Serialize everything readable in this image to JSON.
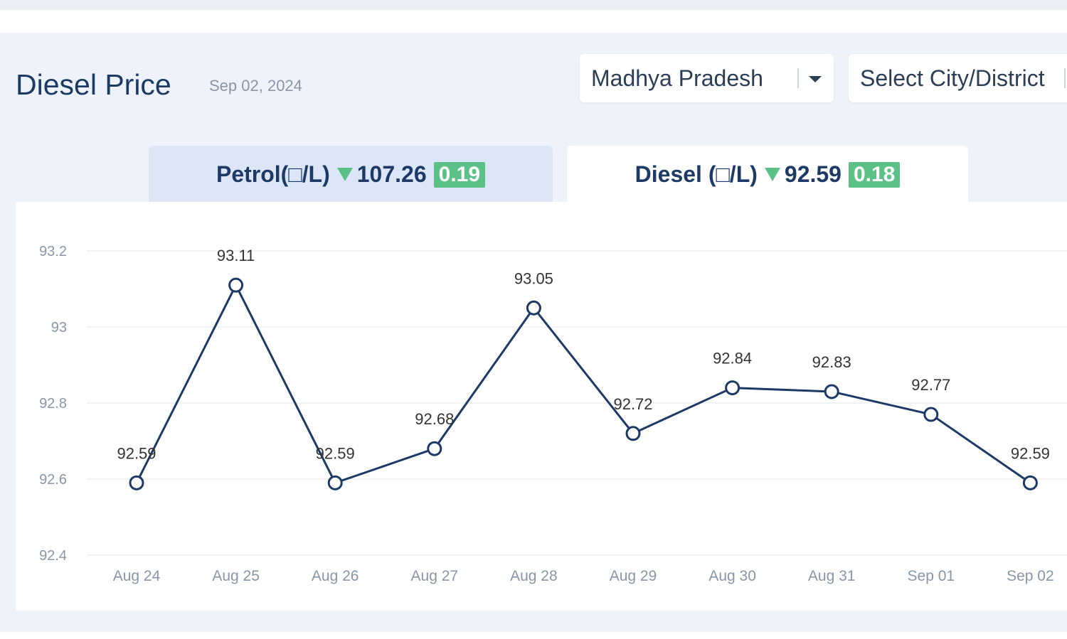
{
  "header": {
    "title": "Diesel Price",
    "date": "Sep 02, 2024"
  },
  "filters": {
    "state_selected": "Madhya Pradesh",
    "city_placeholder": "Select City/District"
  },
  "tabs": [
    {
      "label": "Petrol(□/L)",
      "price": "107.26",
      "change": "0.19",
      "trend": "down"
    },
    {
      "label": "Diesel (□/L)",
      "price": "92.59",
      "change": "0.18",
      "trend": "down"
    }
  ],
  "colors": {
    "line": "#1d3a66",
    "badge": "#5cc187",
    "title": "#1d3a66",
    "grid": "#e3e6ea"
  },
  "chart_data": {
    "type": "line",
    "title": "",
    "xlabel": "",
    "ylabel": "",
    "categories": [
      "Aug 24",
      "Aug 25",
      "Aug 26",
      "Aug 27",
      "Aug 28",
      "Aug 29",
      "Aug 30",
      "Aug 31",
      "Sep 01",
      "Sep 02"
    ],
    "series": [
      {
        "name": "Diesel",
        "values": [
          92.59,
          93.11,
          92.59,
          92.68,
          93.05,
          92.72,
          92.84,
          92.83,
          92.77,
          92.59
        ]
      }
    ],
    "value_labels": [
      "92.59",
      "93.11",
      "92.59",
      "92.68",
      "93.05",
      "92.72",
      "92.84",
      "92.83",
      "92.77",
      "92.59"
    ],
    "yticks": [
      92.4,
      92.6,
      92.8,
      93,
      93.2
    ],
    "ytick_labels": [
      "92.4",
      "92.6",
      "92.8",
      "93",
      "93.2"
    ],
    "ylim": [
      92.4,
      93.2
    ],
    "grid": true
  }
}
